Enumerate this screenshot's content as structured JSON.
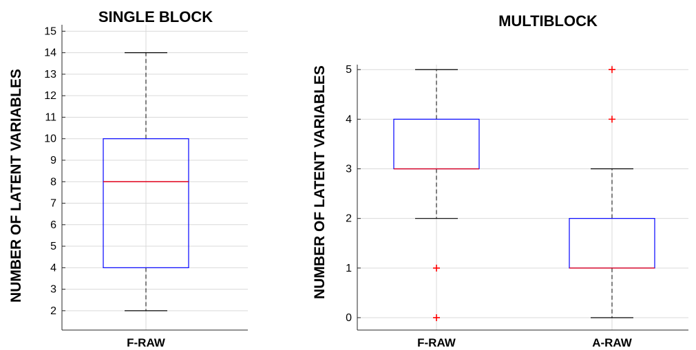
{
  "chart_data": [
    {
      "type": "boxplot",
      "title": "SINGLE BLOCK",
      "ylabel": "NUMBER OF LATENT VARIABLES",
      "xlabel": "",
      "ylim": [
        1.1,
        15.3
      ],
      "yticks": [
        2,
        3,
        4,
        5,
        6,
        7,
        8,
        9,
        10,
        11,
        12,
        13,
        14,
        15
      ],
      "grid": true,
      "categories": [
        "F-RAW"
      ],
      "boxes": [
        {
          "category": "F-RAW",
          "whisker_low": 2,
          "q1": 4,
          "median": 8,
          "q3": 10,
          "whisker_high": 14,
          "outliers": []
        }
      ],
      "colors": {
        "box": "#0000ff",
        "median": "#e0001a",
        "whisker": "#000000",
        "outlier": "#ff0000",
        "grid": "#d9d9d9"
      }
    },
    {
      "type": "boxplot",
      "title": "MULTIBLOCK",
      "ylabel": "NUMBER OF LATENT VARIABLES",
      "xlabel": "",
      "ylim": [
        -0.25,
        5.1
      ],
      "yticks": [
        0,
        1,
        2,
        3,
        4,
        5
      ],
      "grid": true,
      "categories": [
        "F-RAW",
        "A-RAW"
      ],
      "boxes": [
        {
          "category": "F-RAW",
          "whisker_low": 2,
          "q1": 3,
          "median": 3,
          "q3": 4,
          "whisker_high": 5,
          "outliers": [
            0,
            1
          ]
        },
        {
          "category": "A-RAW",
          "whisker_low": 0,
          "q1": 1,
          "median": 1,
          "q3": 2,
          "whisker_high": 3,
          "outliers": [
            4,
            5
          ]
        }
      ],
      "colors": {
        "box": "#0000ff",
        "median": "#e0001a",
        "whisker": "#000000",
        "outlier": "#ff0000",
        "grid": "#d9d9d9"
      }
    }
  ]
}
